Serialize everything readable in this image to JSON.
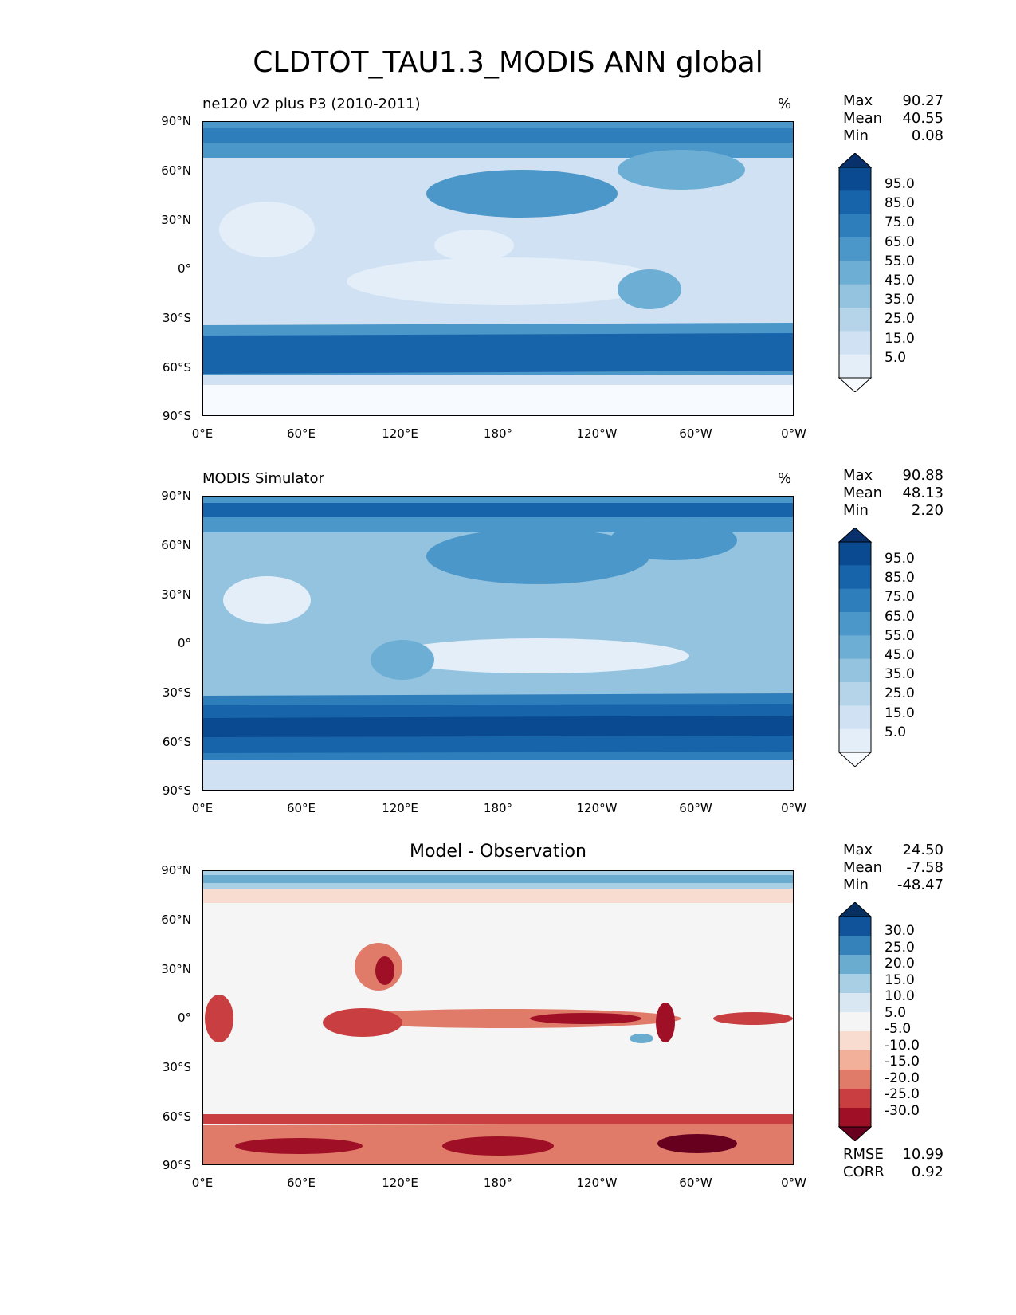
{
  "title": "CLDTOT_TAU1.3_MODIS ANN global",
  "lat_ticks": [
    "90°N",
    "60°N",
    "30°N",
    "0°",
    "30°S",
    "60°S",
    "90°S"
  ],
  "lon_ticks": [
    "0°E",
    "60°E",
    "120°E",
    "180°",
    "120°W",
    "60°W",
    "0°W"
  ],
  "colors": {
    "blues": [
      "#f7fbff",
      "#e3eef9",
      "#cfe1f2",
      "#b5d4e9",
      "#93c3df",
      "#6daed5",
      "#4b97c9",
      "#2f7ebc",
      "#1864aa",
      "#0a4a90",
      "#08306b"
    ],
    "rdbu": [
      "#67001f",
      "#9f0f26",
      "#c93e40",
      "#e07b6a",
      "#f2b09a",
      "#f9dcd0",
      "#f5f5f5",
      "#d8e7f1",
      "#a9cfe5",
      "#6aabd0",
      "#3581ba",
      "#11539a",
      "#053061"
    ]
  },
  "panels": [
    {
      "title": "ne120 v2 plus P3 (2010-2011)",
      "units": "%",
      "stats": [
        {
          "label": "Max",
          "value": "90.27"
        },
        {
          "label": "Mean",
          "value": "40.55"
        },
        {
          "label": "Min",
          "value": "0.08"
        }
      ],
      "colorbar": {
        "scheme": "blues",
        "labels": [
          "95.0",
          "85.0",
          "75.0",
          "65.0",
          "55.0",
          "45.0",
          "35.0",
          "25.0",
          "15.0",
          "5.0"
        ]
      }
    },
    {
      "title": "MODIS Simulator",
      "units": "%",
      "stats": [
        {
          "label": "Max",
          "value": "90.88"
        },
        {
          "label": "Mean",
          "value": "48.13"
        },
        {
          "label": "Min",
          "value": "2.20"
        }
      ],
      "colorbar": {
        "scheme": "blues",
        "labels": [
          "95.0",
          "85.0",
          "75.0",
          "65.0",
          "55.0",
          "45.0",
          "35.0",
          "25.0",
          "15.0",
          "5.0"
        ]
      }
    },
    {
      "title": "Model - Observation",
      "units": "",
      "stats": [
        {
          "label": "Max",
          "value": "24.50"
        },
        {
          "label": "Mean",
          "value": "-7.58"
        },
        {
          "label": "Min",
          "value": "-48.47"
        }
      ],
      "colorbar": {
        "scheme": "rdbu",
        "labels": [
          "30.0",
          "25.0",
          "20.0",
          "15.0",
          "10.0",
          "5.0",
          "-5.0",
          "-10.0",
          "-15.0",
          "-20.0",
          "-25.0",
          "-30.0"
        ]
      },
      "metrics": [
        {
          "label": "RMSE",
          "value": "10.99"
        },
        {
          "label": "CORR",
          "value": "0.92"
        }
      ]
    }
  ]
}
